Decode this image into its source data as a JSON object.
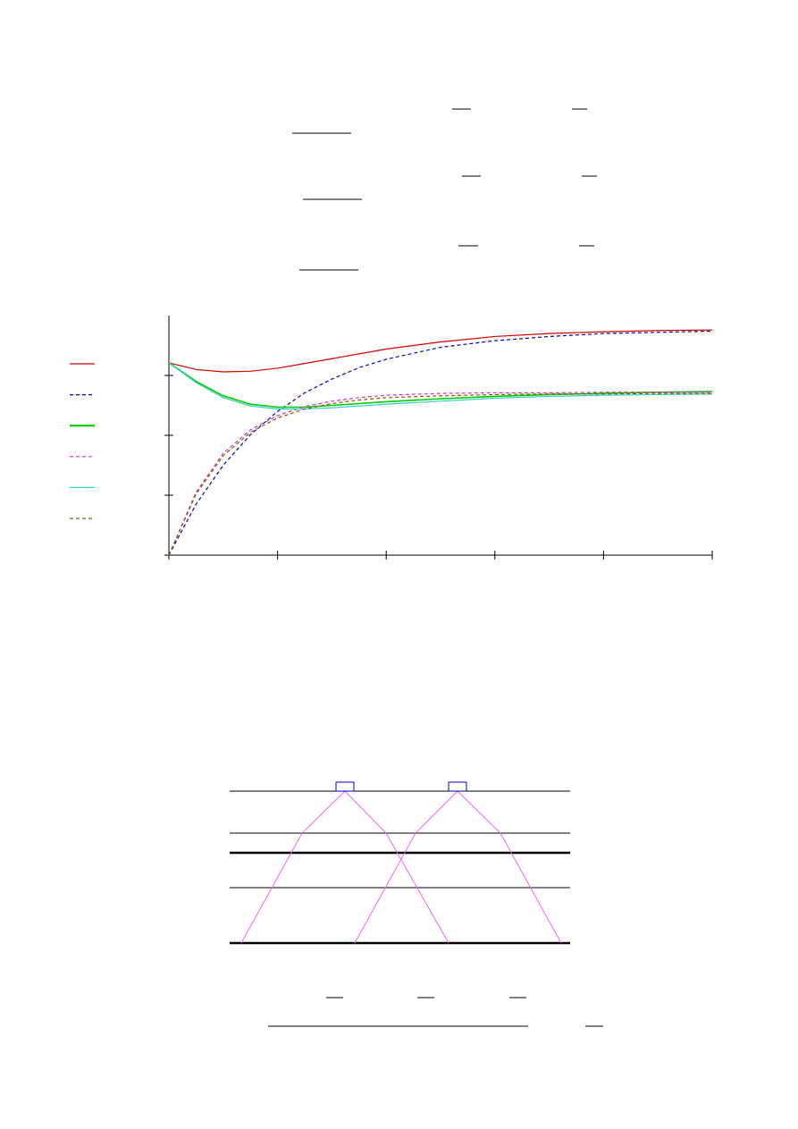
{
  "chart_data": {
    "type": "line",
    "x": [
      0,
      0.25,
      0.5,
      0.75,
      1,
      1.25,
      1.5,
      1.75,
      2,
      2.5,
      3,
      3.5,
      4,
      4.5,
      5
    ],
    "series": [
      {
        "color": "#d40000",
        "linestyle": "solid",
        "values": [
          3.21,
          3.1,
          3.06,
          3.07,
          3.12,
          3.2,
          3.28,
          3.36,
          3.44,
          3.56,
          3.65,
          3.7,
          3.73,
          3.75,
          3.76
        ]
      },
      {
        "color": "#0000cc",
        "linestyle": "dashed",
        "values": [
          0,
          0.85,
          1.5,
          2.01,
          2.4,
          2.71,
          2.94,
          3.13,
          3.27,
          3.47,
          3.58,
          3.65,
          3.7,
          3.72,
          3.74
        ]
      },
      {
        "color": "#00cc00",
        "linestyle": "solid",
        "values": [
          3.21,
          2.9,
          2.66,
          2.52,
          2.47,
          2.47,
          2.5,
          2.53,
          2.56,
          2.61,
          2.65,
          2.68,
          2.7,
          2.72,
          2.73
        ]
      },
      {
        "color": "#cc33cc",
        "linestyle": "dashed",
        "values": [
          0,
          1.05,
          1.7,
          2.09,
          2.33,
          2.48,
          2.57,
          2.63,
          2.67,
          2.7,
          2.71,
          2.71,
          2.72,
          2.72,
          2.72
        ]
      },
      {
        "color": "#33cccc",
        "linestyle": "solid",
        "values": [
          3.21,
          2.88,
          2.63,
          2.49,
          2.44,
          2.44,
          2.46,
          2.49,
          2.52,
          2.57,
          2.62,
          2.65,
          2.67,
          2.68,
          2.69
        ]
      },
      {
        "color": "#8b5a00",
        "linestyle": "dashed",
        "values": [
          0,
          1.02,
          1.66,
          2.05,
          2.29,
          2.44,
          2.53,
          2.59,
          2.63,
          2.66,
          2.68,
          2.69,
          2.69,
          2.7,
          2.7
        ]
      }
    ],
    "xlim": [
      0,
      5
    ],
    "xticks": [
      0,
      1,
      2,
      3,
      4,
      5
    ],
    "ylim": [
      0,
      4
    ],
    "yticks": [
      0,
      1,
      2,
      3
    ]
  }
}
